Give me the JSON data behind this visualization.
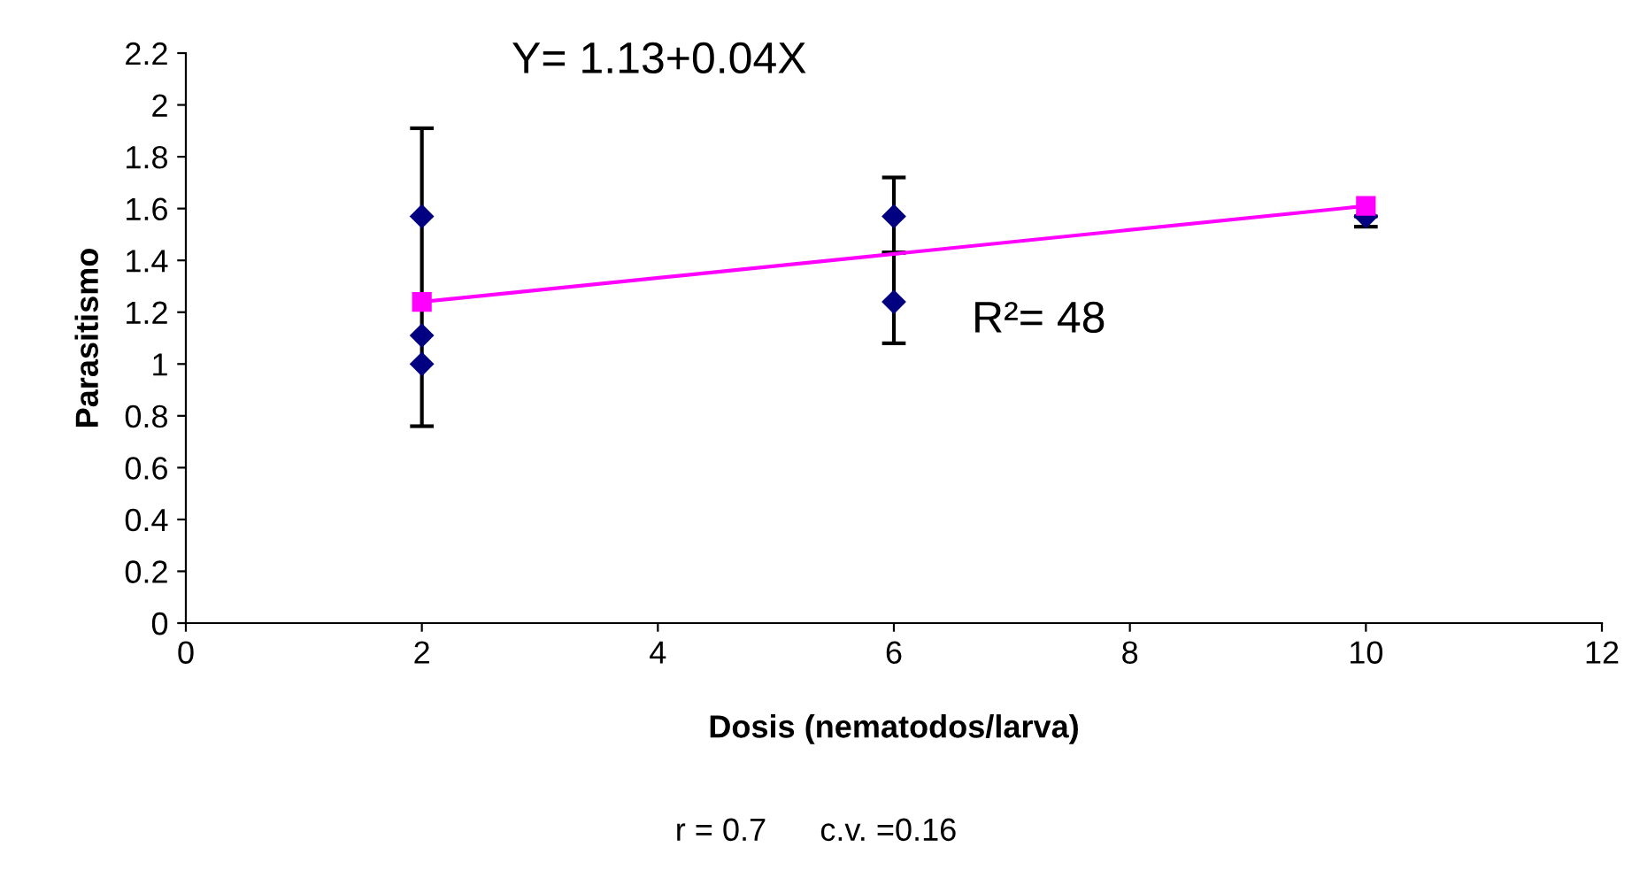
{
  "chart_data": {
    "type": "scatter",
    "xlabel": "Dosis (nematodos/larva)",
    "ylabel": "Parasitismo",
    "annotations": [
      "Y= 1.13+0.04X",
      "R²= 48",
      "r = 0.7      c.v. =0.16"
    ],
    "series": [
      {
        "color": "#000080",
        "marker": "diamond",
        "x": [
          2,
          2,
          2,
          6,
          6,
          10
        ],
        "values": [
          1.57,
          1.11,
          1.0,
          1.57,
          1.24,
          1.57
        ],
        "errors": [
          null,
          [
            0.76,
            1.91
          ],
          null,
          [
            1.43,
            1.72
          ],
          [
            1.08,
            1.43
          ],
          [
            1.53,
            1.57
          ]
        ]
      },
      {
        "type": "line",
        "color": "#ff00ff",
        "marker": "square",
        "x": [
          2,
          10
        ],
        "values": [
          1.24,
          1.61
        ]
      }
    ],
    "xlim": [
      0,
      12
    ],
    "xticks": [
      0,
      2,
      4,
      6,
      8,
      10,
      12
    ],
    "ylim": [
      0,
      2.2
    ],
    "yticks": [
      0,
      0.2,
      0.4,
      0.6,
      0.8,
      1,
      1.2,
      1.4,
      1.6,
      1.8,
      2,
      2.2
    ],
    "grid": false,
    "legend": false
  }
}
